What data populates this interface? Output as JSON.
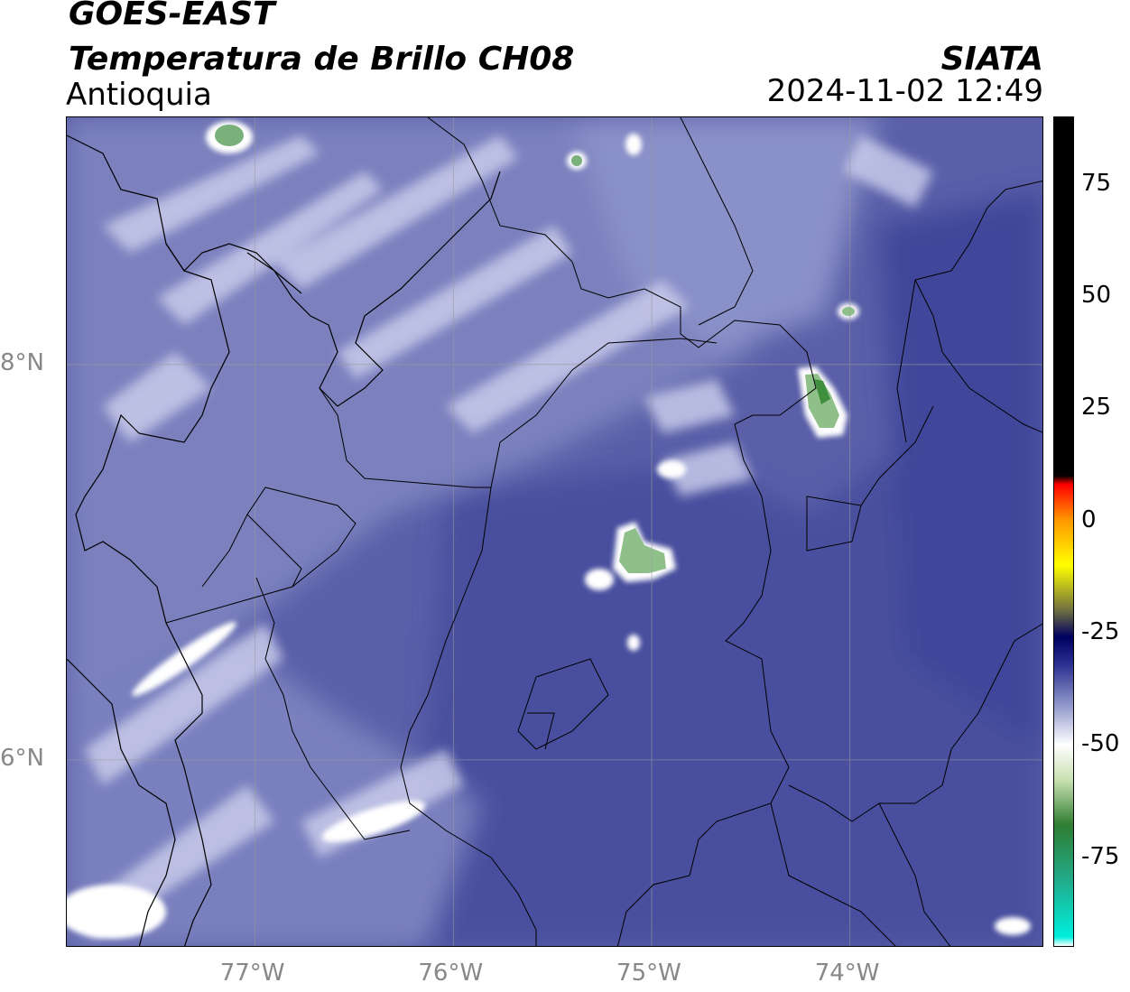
{
  "header": {
    "satellite": "GOES-EAST",
    "product": "Temperatura de Brillo CH08",
    "region": "Antioquia",
    "agency": "SIATA",
    "datetime": "2024-11-02 12:49"
  },
  "map": {
    "lon_labels": [
      "77°W",
      "76°W",
      "75°W",
      "74°W"
    ],
    "lat_labels": [
      "8°N",
      "6°N"
    ],
    "lon_range": [
      -77.95,
      -73.02
    ],
    "lat_range": [
      5.05,
      9.25
    ],
    "background_color": "#5a5fa8",
    "grid": true
  },
  "colorbar": {
    "ticks": [
      "75",
      "50",
      "25",
      "0",
      "-25",
      "-50",
      "-75"
    ],
    "range": [
      -95,
      90
    ],
    "stops": [
      {
        "v": -95,
        "c": "#ffffff"
      },
      {
        "v": -93,
        "c": "#00eedd"
      },
      {
        "v": -80,
        "c": "#22aa88"
      },
      {
        "v": -68,
        "c": "#2e7d32"
      },
      {
        "v": -58,
        "c": "#c8e0b0"
      },
      {
        "v": -50,
        "c": "#ffffff"
      },
      {
        "v": -42,
        "c": "#9aa0d0"
      },
      {
        "v": -32,
        "c": "#2a2f90"
      },
      {
        "v": -26,
        "c": "#000060"
      },
      {
        "v": -20,
        "c": "#707040"
      },
      {
        "v": -10,
        "c": "#ffff00"
      },
      {
        "v": 0,
        "c": "#ff9900"
      },
      {
        "v": 8,
        "c": "#ff0000"
      },
      {
        "v": 10,
        "c": "#000000"
      },
      {
        "v": 90,
        "c": "#000000"
      }
    ]
  }
}
